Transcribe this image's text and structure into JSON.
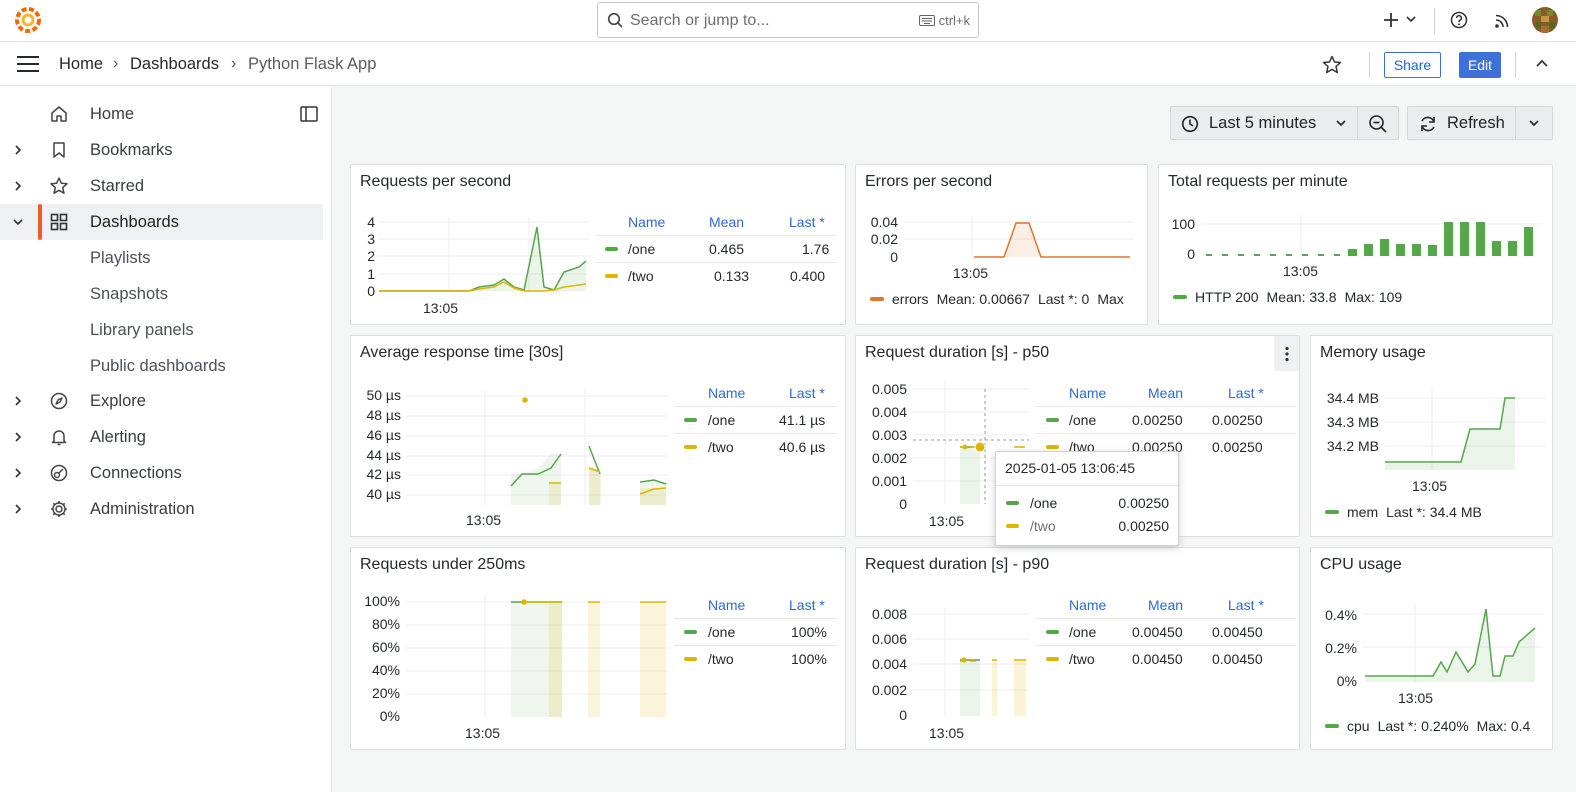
{
  "topbar": {
    "search_placeholder": "Search or jump to...",
    "search_shortcut": "ctrl+k",
    "icons": [
      "grafana-logo-icon",
      "search-icon",
      "keyboard-icon",
      "plus-icon",
      "chevron-down-icon",
      "help-icon",
      "news-icon",
      "avatar"
    ]
  },
  "breadcrumb": {
    "home": "Home",
    "dashboards": "Dashboards",
    "current": "Python Flask App"
  },
  "navbar": {
    "share_label": "Share",
    "edit_label": "Edit"
  },
  "sidebar": {
    "items": [
      {
        "label": "Home"
      },
      {
        "label": "Bookmarks"
      },
      {
        "label": "Starred"
      },
      {
        "label": "Dashboards"
      },
      {
        "label": "Explore"
      },
      {
        "label": "Alerting"
      },
      {
        "label": "Connections"
      },
      {
        "label": "Administration"
      }
    ],
    "sub_items": [
      "Playlists",
      "Snapshots",
      "Library panels",
      "Public dashboards"
    ]
  },
  "controls": {
    "time_range": "Last 5 minutes",
    "refresh_label": "Refresh"
  },
  "colors": {
    "one": "#56a64b",
    "two": "#e0b400",
    "errors": "#e0752d",
    "accent": "#f05a28",
    "link": "#3d71d9"
  },
  "panels": {
    "rps": {
      "title": "Requests per second",
      "yticks": [
        "4",
        "3",
        "2",
        "1",
        "0"
      ],
      "xtick": "13:05",
      "legend_headers": {
        "name": "Name",
        "mean": "Mean",
        "last": "Last *"
      },
      "rows": [
        {
          "name": "/one",
          "mean": "0.465",
          "last": "1.76"
        },
        {
          "name": "/two",
          "mean": "0.133",
          "last": "0.400"
        }
      ]
    },
    "eps": {
      "title": "Errors per second",
      "yticks": [
        "0.04",
        "0.02",
        "0"
      ],
      "xtick": "13:05",
      "legend": {
        "name": "errors",
        "mean": "Mean: 0.00667",
        "last": "Last *: 0",
        "max": "Max"
      }
    },
    "trpm": {
      "title": "Total requests per minute",
      "yticks": [
        "100",
        "0"
      ],
      "xtick": "13:05",
      "legend": {
        "name": "HTTP 200",
        "mean": "Mean: 33.8",
        "max": "Max: 109"
      }
    },
    "art": {
      "title": "Average response time [30s]",
      "yticks": [
        "50 µs",
        "48 µs",
        "46 µs",
        "44 µs",
        "42 µs",
        "40 µs"
      ],
      "xtick": "13:05",
      "legend_headers": {
        "name": "Name",
        "last": "Last *"
      },
      "rows": [
        {
          "name": "/one",
          "last": "41.1 µs"
        },
        {
          "name": "/two",
          "last": "40.6 µs"
        }
      ]
    },
    "p50": {
      "title": "Request duration [s] - p50",
      "yticks": [
        "0.005",
        "0.004",
        "0.003",
        "0.002",
        "0.001",
        "0"
      ],
      "xtick": "13:05",
      "legend_headers": {
        "name": "Name",
        "mean": "Mean",
        "last": "Last *"
      },
      "rows": [
        {
          "name": "/one",
          "mean": "0.00250",
          "last": "0.00250"
        },
        {
          "name": "/two",
          "mean": "0.00250",
          "last": "0.00250"
        }
      ],
      "tooltip": {
        "time": "2025-01-05 13:06:45",
        "rows": [
          {
            "name": "/one",
            "value": "0.00250"
          },
          {
            "name": "/two",
            "value": "0.00250"
          }
        ]
      }
    },
    "mem": {
      "title": "Memory usage",
      "yticks": [
        "34.4 MB",
        "34.3 MB",
        "34.2 MB"
      ],
      "xtick": "13:05",
      "legend": {
        "name": "mem",
        "last": "Last *: 34.4 MB"
      }
    },
    "u250": {
      "title": "Requests under 250ms",
      "yticks": [
        "100%",
        "80%",
        "60%",
        "40%",
        "20%",
        "0%"
      ],
      "xtick": "13:05",
      "legend_headers": {
        "name": "Name",
        "last": "Last *"
      },
      "rows": [
        {
          "name": "/one",
          "last": "100%"
        },
        {
          "name": "/two",
          "last": "100%"
        }
      ]
    },
    "p90": {
      "title": "Request duration [s] - p90",
      "yticks": [
        "0.008",
        "0.006",
        "0.004",
        "0.002",
        "0"
      ],
      "xtick": "13:05",
      "legend_headers": {
        "name": "Name",
        "mean": "Mean",
        "last": "Last *"
      },
      "rows": [
        {
          "name": "/one",
          "mean": "0.00450",
          "last": "0.00450"
        },
        {
          "name": "/two",
          "mean": "0.00450",
          "last": "0.00450"
        }
      ]
    },
    "cpu": {
      "title": "CPU usage",
      "yticks": [
        "0.4%",
        "0.2%",
        "0%"
      ],
      "xtick": "13:05",
      "legend": {
        "name": "cpu",
        "last": "Last *: 0.240%",
        "max": "Max: 0.4"
      }
    }
  }
}
